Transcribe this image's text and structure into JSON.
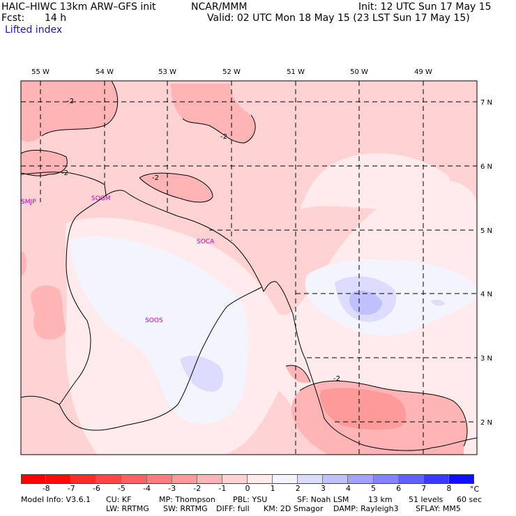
{
  "header": {
    "model": "HAIC–HIWC 13km ARW–GFS init",
    "org": "NCAR/MMM",
    "init": "Init: 12 UTC Sun 17 May 15",
    "fcst_label": "Fcst:",
    "fcst_value": "14 h",
    "valid": "Valid: 02 UTC Mon 18 May 15 (23 LST Sun 17 May 15)",
    "field": "Lifted index"
  },
  "map": {
    "lon_labels": [
      "55 W",
      "54 W",
      "53 W",
      "52 W",
      "51 W",
      "50 W",
      "49 W"
    ],
    "lat_labels": [
      "7 N",
      "6 N",
      "5 N",
      "4 N",
      "3 N",
      "2 N"
    ],
    "stations": [
      "SMJP",
      "SOGM",
      "SOCA",
      "SOOS"
    ],
    "contour_labels": [
      "-2",
      "-2",
      "-2",
      "-2",
      "-2"
    ]
  },
  "colorbar": {
    "ticks": [
      "-8",
      "-7",
      "-6",
      "-5",
      "-4",
      "-3",
      "-2",
      "-1",
      "0",
      "1",
      "2",
      "3",
      "4",
      "5",
      "6",
      "7",
      "8"
    ],
    "unit": "°C",
    "colors": [
      "#ff0a0a",
      "#ff2b2b",
      "#ff4747",
      "#ff6262",
      "#ff7d7d",
      "#ff9a9a",
      "#ffb5b5",
      "#ffd3d3",
      "#ffebeb",
      "#f4f4ff",
      "#dcdcff",
      "#c0c0ff",
      "#a3a3ff",
      "#8484ff",
      "#6060ff",
      "#3a3aff",
      "#1010ff"
    ]
  },
  "footer": {
    "line1": [
      "Model Info: V3.6.1",
      "CU: KF",
      "MP: Thompson",
      "PBL: YSU",
      "SF: Noah LSM",
      "13 km",
      "51 levels",
      "60 sec"
    ],
    "line2": [
      "LW: RRTMG",
      "SW: RRTMG",
      "DIFF: full",
      "KM: 2D Smagor",
      "DAMP: Rayleigh3",
      "SFLAY: MM5"
    ]
  }
}
